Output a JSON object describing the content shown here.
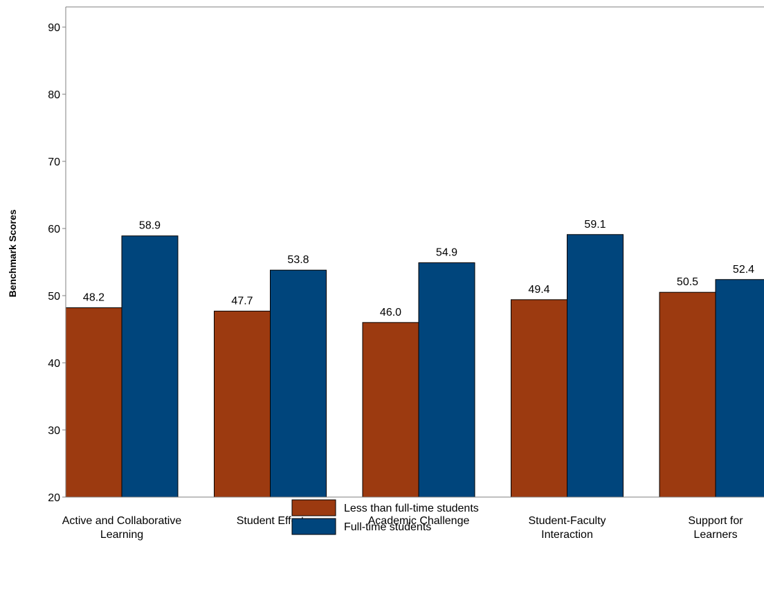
{
  "chart_data": {
    "type": "bar",
    "ylabel": "Benchmark Scores",
    "xlabel": "",
    "ylim": [
      20,
      93
    ],
    "yticks": [
      20,
      30,
      40,
      50,
      60,
      70,
      80,
      90
    ],
    "grid": false,
    "legend_position": "bottom-center",
    "categories": [
      [
        "Active and Collaborative",
        "Learning"
      ],
      [
        "Student Effort"
      ],
      [
        "Academic Challenge"
      ],
      [
        "Student-Faculty",
        "Interaction"
      ],
      [
        "Support for",
        "Learners"
      ]
    ],
    "series": [
      {
        "name": "Less than full-time students",
        "color": "#9c3a10",
        "values": [
          48.2,
          47.7,
          46.0,
          49.4,
          50.5
        ],
        "labels": [
          "48.2",
          "47.7",
          "46.0",
          "49.4",
          "50.5"
        ]
      },
      {
        "name": "Full-time students",
        "color": "#00457c",
        "values": [
          58.9,
          53.8,
          54.9,
          59.1,
          52.4
        ],
        "labels": [
          "58.9",
          "53.8",
          "54.9",
          "59.1",
          "52.4"
        ]
      }
    ]
  }
}
